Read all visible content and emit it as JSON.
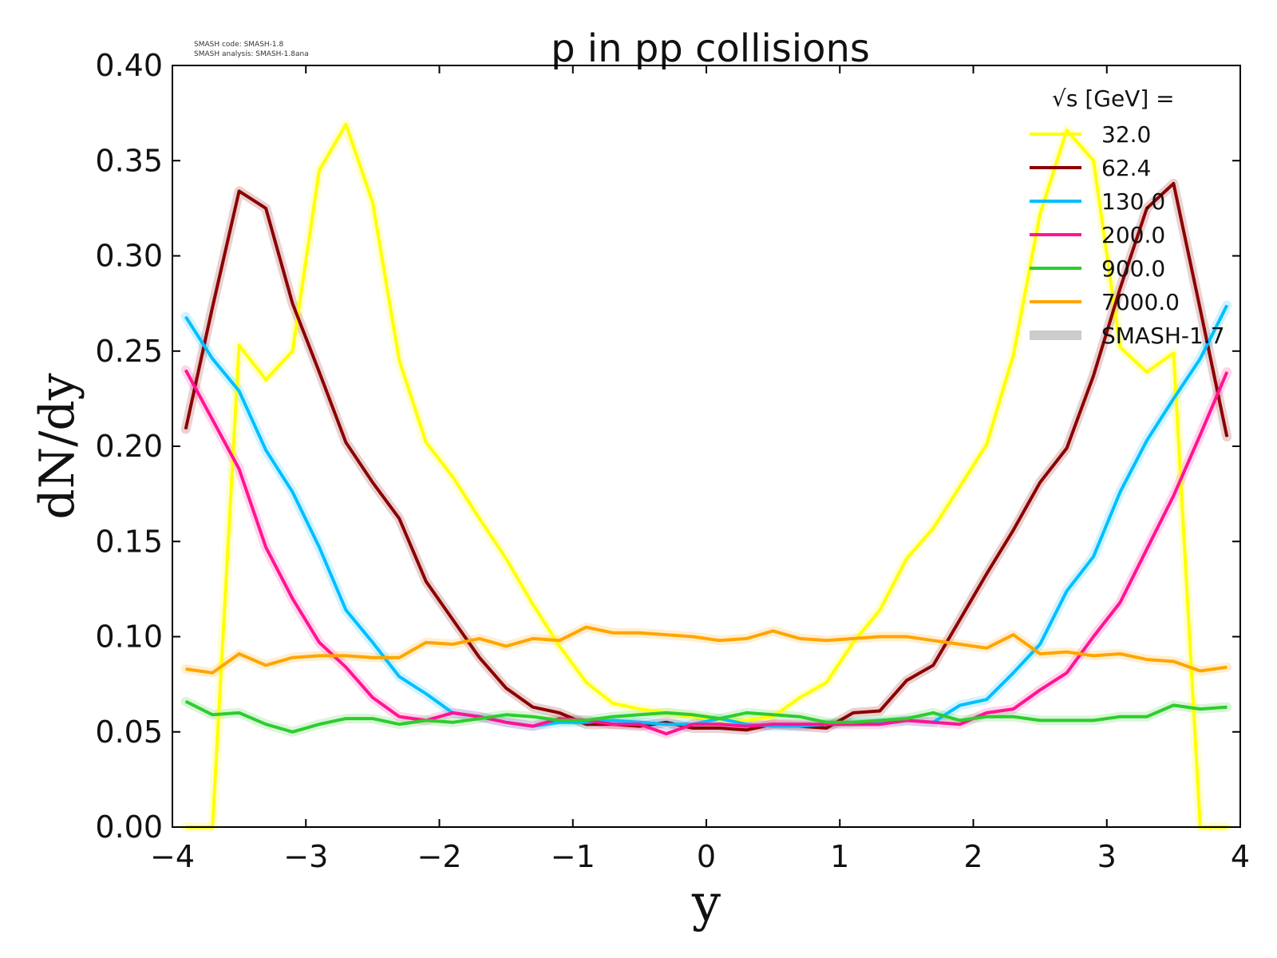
{
  "meta": {
    "code_line": "SMASH code:      SMASH-1.8",
    "analysis_line": "SMASH analysis: SMASH-1.8ana"
  },
  "chart_data": {
    "type": "line",
    "title": "p in pp collisions",
    "xlabel": "y",
    "ylabel": "dN/dy",
    "xlim": [
      -4,
      4
    ],
    "ylim": [
      0,
      0.4
    ],
    "xticks": [
      "−4",
      "−3",
      "−2",
      "−1",
      "0",
      "1",
      "2",
      "3",
      "4"
    ],
    "yticks": [
      "0.00",
      "0.05",
      "0.10",
      "0.15",
      "0.20",
      "0.25",
      "0.30",
      "0.35",
      "0.40"
    ],
    "grid": false,
    "legend_position": "top-right",
    "legend_title": "√s  [GeV] =",
    "x": [
      -3.9,
      -3.7,
      -3.5,
      -3.3,
      -3.1,
      -2.9,
      -2.7,
      -2.5,
      -2.3,
      -2.1,
      -1.9,
      -1.7,
      -1.5,
      -1.3,
      -1.1,
      -0.9,
      -0.7,
      -0.5,
      -0.3,
      -0.1,
      0.1,
      0.3,
      0.5,
      0.7,
      0.9,
      1.1,
      1.3,
      1.5,
      1.7,
      1.9,
      2.1,
      2.3,
      2.5,
      2.7,
      2.9,
      3.1,
      3.3,
      3.5,
      3.7,
      3.9
    ],
    "series": [
      {
        "name": "32.0",
        "color": "#ffff00",
        "values": [
          0.0,
          0.0,
          0.253,
          0.235,
          0.25,
          0.345,
          0.369,
          0.328,
          0.245,
          0.202,
          0.184,
          0.162,
          0.141,
          0.117,
          0.095,
          0.076,
          0.065,
          0.062,
          0.06,
          0.058,
          0.056,
          0.056,
          0.058,
          0.068,
          0.076,
          0.097,
          0.114,
          0.141,
          0.157,
          0.179,
          0.201,
          0.248,
          0.322,
          0.366,
          0.35,
          0.252,
          0.239,
          0.249,
          0.0,
          0.0
        ]
      },
      {
        "name": "62.4",
        "color": "#8b0000",
        "values": [
          0.209,
          0.273,
          0.334,
          0.325,
          0.275,
          0.239,
          0.202,
          0.181,
          0.162,
          0.129,
          0.109,
          0.089,
          0.073,
          0.063,
          0.06,
          0.054,
          0.054,
          0.053,
          0.055,
          0.052,
          0.052,
          0.051,
          0.054,
          0.053,
          0.052,
          0.06,
          0.061,
          0.077,
          0.085,
          0.109,
          0.133,
          0.156,
          0.181,
          0.199,
          0.237,
          0.283,
          0.325,
          0.338,
          0.272,
          0.205
        ]
      },
      {
        "name": "130.0",
        "color": "#00bfff",
        "values": [
          0.268,
          0.246,
          0.229,
          0.198,
          0.176,
          0.147,
          0.114,
          0.097,
          0.079,
          0.07,
          0.06,
          0.058,
          0.055,
          0.053,
          0.055,
          0.055,
          0.056,
          0.055,
          0.054,
          0.054,
          0.057,
          0.054,
          0.053,
          0.053,
          0.054,
          0.055,
          0.055,
          0.056,
          0.055,
          0.064,
          0.067,
          0.081,
          0.096,
          0.124,
          0.142,
          0.176,
          0.203,
          0.225,
          0.246,
          0.274
        ]
      },
      {
        "name": "200.0",
        "color": "#ff1493",
        "values": [
          0.24,
          0.214,
          0.188,
          0.147,
          0.12,
          0.097,
          0.084,
          0.068,
          0.058,
          0.056,
          0.06,
          0.058,
          0.055,
          0.053,
          0.057,
          0.056,
          0.054,
          0.054,
          0.049,
          0.054,
          0.054,
          0.053,
          0.054,
          0.054,
          0.054,
          0.054,
          0.054,
          0.056,
          0.055,
          0.054,
          0.06,
          0.062,
          0.072,
          0.081,
          0.1,
          0.118,
          0.146,
          0.174,
          0.206,
          0.239
        ]
      },
      {
        "name": "900.0",
        "color": "#2ecc2e",
        "values": [
          0.066,
          0.059,
          0.06,
          0.054,
          0.05,
          0.054,
          0.057,
          0.057,
          0.054,
          0.056,
          0.055,
          0.057,
          0.059,
          0.058,
          0.056,
          0.056,
          0.058,
          0.059,
          0.06,
          0.059,
          0.057,
          0.06,
          0.059,
          0.058,
          0.055,
          0.055,
          0.056,
          0.057,
          0.06,
          0.056,
          0.058,
          0.058,
          0.056,
          0.056,
          0.056,
          0.058,
          0.058,
          0.064,
          0.062,
          0.063
        ]
      },
      {
        "name": "7000.0",
        "color": "#ffa500",
        "values": [
          0.083,
          0.081,
          0.091,
          0.085,
          0.089,
          0.09,
          0.09,
          0.089,
          0.089,
          0.097,
          0.096,
          0.099,
          0.095,
          0.099,
          0.098,
          0.105,
          0.102,
          0.102,
          0.101,
          0.1,
          0.098,
          0.099,
          0.103,
          0.099,
          0.098,
          0.099,
          0.1,
          0.1,
          0.098,
          0.096,
          0.094,
          0.101,
          0.091,
          0.092,
          0.09,
          0.091,
          0.088,
          0.087,
          0.082,
          0.084
        ]
      }
    ],
    "reference": {
      "name": "SMASH-1.7",
      "color": "#cccccc"
    }
  }
}
